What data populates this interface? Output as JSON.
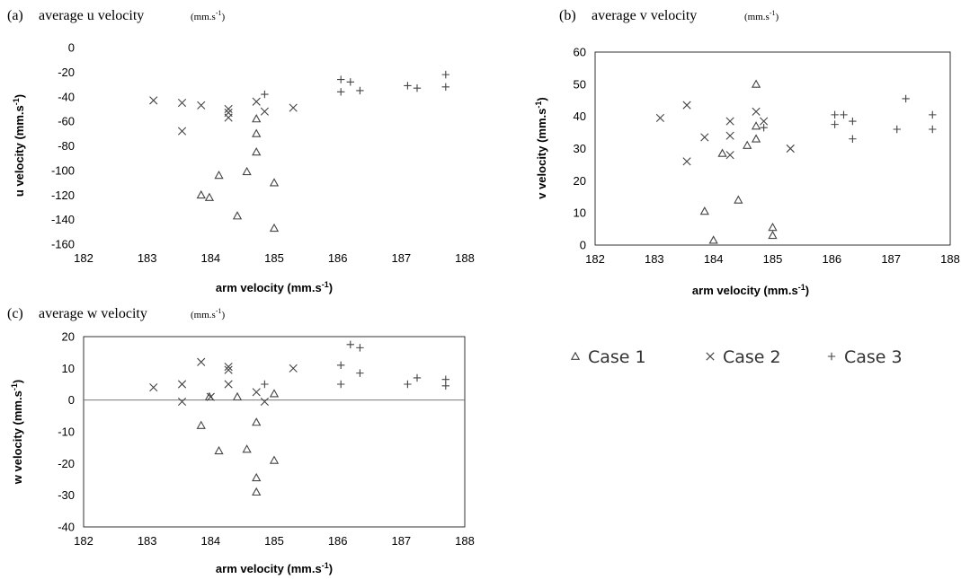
{
  "legend": [
    {
      "symbol": "triangle",
      "label": "Case 1"
    },
    {
      "symbol": "x",
      "label": "Case 2"
    },
    {
      "symbol": "plus",
      "label": "Case 3"
    }
  ],
  "chart_data": [
    {
      "type": "scatter",
      "panel_label": "(a)",
      "title": "average u velocity",
      "title_unit": "(mm.s",
      "title_unit_sup": "-1",
      "title_unit_close": ")",
      "xlabel": "arm velocity (mm.s",
      "xlabel_sup": "-1",
      "xlabel_close": ")",
      "ylabel": "u velocity (mm.s",
      "ylabel_sup": "-1",
      "ylabel_close": ")",
      "xlim": [
        182,
        188
      ],
      "ylim": [
        -160,
        0
      ],
      "xticks": [
        182,
        183,
        184,
        185,
        186,
        187,
        188
      ],
      "yticks": [
        -160,
        -140,
        -120,
        -100,
        -80,
        -60,
        -40,
        -20,
        0
      ],
      "frame": false,
      "zero_line": false,
      "series": [
        {
          "name": "Case 1",
          "marker": "triangle",
          "points": [
            [
              183.85,
              -120
            ],
            [
              183.98,
              -122
            ],
            [
              184.13,
              -104
            ],
            [
              184.42,
              -137
            ],
            [
              184.57,
              -101
            ],
            [
              184.72,
              -70
            ],
            [
              184.72,
              -58
            ],
            [
              184.72,
              -85
            ],
            [
              185.0,
              -110
            ],
            [
              185.0,
              -147
            ]
          ]
        },
        {
          "name": "Case 2",
          "marker": "x",
          "points": [
            [
              183.1,
              -43
            ],
            [
              183.55,
              -45
            ],
            [
              183.55,
              -68
            ],
            [
              183.85,
              -47
            ],
            [
              184.28,
              -50
            ],
            [
              184.28,
              -53
            ],
            [
              184.28,
              -57
            ],
            [
              184.72,
              -44
            ],
            [
              184.85,
              -52
            ],
            [
              185.3,
              -49
            ]
          ]
        },
        {
          "name": "Case 3",
          "marker": "plus",
          "points": [
            [
              184.85,
              -38
            ],
            [
              186.05,
              -26
            ],
            [
              186.05,
              -36
            ],
            [
              186.2,
              -28
            ],
            [
              186.35,
              -35
            ],
            [
              187.1,
              -31
            ],
            [
              187.25,
              -33
            ],
            [
              187.7,
              -22
            ],
            [
              187.7,
              -32
            ]
          ]
        }
      ]
    },
    {
      "type": "scatter",
      "panel_label": "(b)",
      "title": "average v velocity",
      "title_unit": "(mm.s",
      "title_unit_sup": "-1",
      "title_unit_close": ")",
      "xlabel": "arm velocity (mm.s",
      "xlabel_sup": "-1",
      "xlabel_close": ")",
      "ylabel": "v velocity (mm.s",
      "ylabel_sup": "-1",
      "ylabel_close": ")",
      "xlim": [
        182,
        188
      ],
      "ylim": [
        0,
        60
      ],
      "xticks": [
        182,
        183,
        184,
        185,
        186,
        187,
        188
      ],
      "yticks": [
        0,
        10,
        20,
        30,
        40,
        50,
        60
      ],
      "frame": true,
      "zero_line": false,
      "series": [
        {
          "name": "Case 1",
          "marker": "triangle",
          "points": [
            [
              183.85,
              10.5
            ],
            [
              184.0,
              1.5
            ],
            [
              184.15,
              28.5
            ],
            [
              184.42,
              14
            ],
            [
              184.57,
              31
            ],
            [
              184.72,
              33
            ],
            [
              184.72,
              37
            ],
            [
              184.72,
              50
            ],
            [
              185.0,
              5.5
            ],
            [
              185.0,
              3
            ]
          ]
        },
        {
          "name": "Case 2",
          "marker": "x",
          "points": [
            [
              183.1,
              39.5
            ],
            [
              183.55,
              43.5
            ],
            [
              183.55,
              26
            ],
            [
              183.85,
              33.5
            ],
            [
              184.28,
              38.5
            ],
            [
              184.28,
              34
            ],
            [
              184.28,
              28
            ],
            [
              184.72,
              41.5
            ],
            [
              184.85,
              38.5
            ],
            [
              185.3,
              30
            ]
          ]
        },
        {
          "name": "Case 3",
          "marker": "plus",
          "points": [
            [
              184.85,
              36.5
            ],
            [
              186.05,
              40.5
            ],
            [
              186.05,
              37.5
            ],
            [
              186.2,
              40.5
            ],
            [
              186.35,
              38.5
            ],
            [
              186.35,
              33
            ],
            [
              187.1,
              36
            ],
            [
              187.25,
              45.5
            ],
            [
              187.7,
              40.5
            ],
            [
              187.7,
              36
            ]
          ]
        }
      ]
    },
    {
      "type": "scatter",
      "panel_label": "(c)",
      "title": "average w velocity",
      "title_unit": "(mm.s",
      "title_unit_sup": "-1",
      "title_unit_close": ")",
      "xlabel": "arm velocity (mm.s",
      "xlabel_sup": "-1",
      "xlabel_close": ")",
      "ylabel": "w velocity (mm.s",
      "ylabel_sup": "-1",
      "ylabel_close": ")",
      "xlim": [
        182,
        188
      ],
      "ylim": [
        -40,
        20
      ],
      "xticks": [
        182,
        183,
        184,
        185,
        186,
        187,
        188
      ],
      "yticks": [
        -40,
        -30,
        -20,
        -10,
        0,
        10,
        20
      ],
      "frame": true,
      "zero_line": true,
      "series": [
        {
          "name": "Case 1",
          "marker": "triangle",
          "points": [
            [
              183.85,
              -8
            ],
            [
              183.98,
              1
            ],
            [
              184.13,
              -16
            ],
            [
              184.42,
              1
            ],
            [
              184.57,
              -15.5
            ],
            [
              184.72,
              -7
            ],
            [
              184.72,
              -24.5
            ],
            [
              184.72,
              -29
            ],
            [
              185.0,
              2
            ],
            [
              185.0,
              -19
            ]
          ]
        },
        {
          "name": "Case 2",
          "marker": "x",
          "points": [
            [
              183.1,
              4
            ],
            [
              183.55,
              5
            ],
            [
              183.55,
              -0.5
            ],
            [
              183.85,
              12
            ],
            [
              184.0,
              1
            ],
            [
              184.28,
              10.5
            ],
            [
              184.28,
              9.5
            ],
            [
              184.28,
              5
            ],
            [
              184.72,
              2.5
            ],
            [
              184.85,
              -0.5
            ],
            [
              185.3,
              10
            ]
          ]
        },
        {
          "name": "Case 3",
          "marker": "plus",
          "points": [
            [
              184.85,
              5
            ],
            [
              186.05,
              11
            ],
            [
              186.05,
              5
            ],
            [
              186.2,
              17.5
            ],
            [
              186.35,
              16.5
            ],
            [
              186.35,
              8.5
            ],
            [
              187.1,
              5
            ],
            [
              187.25,
              7
            ],
            [
              187.7,
              6.5
            ],
            [
              187.7,
              4.5
            ]
          ]
        }
      ]
    }
  ]
}
